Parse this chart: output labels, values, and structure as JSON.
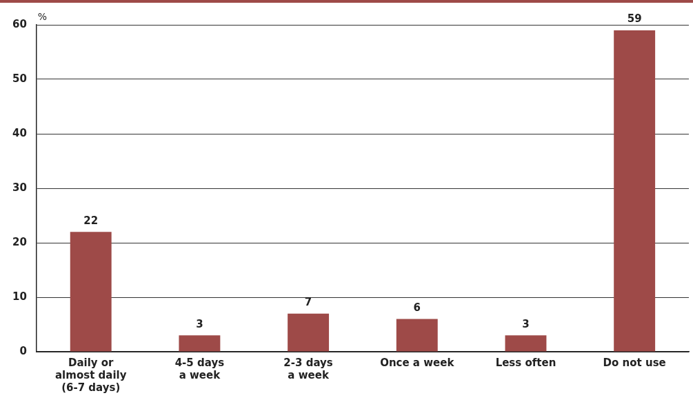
{
  "chart_data": {
    "type": "bar",
    "ylabel": "%",
    "categories": [
      "Daily or\nalmost daily\n(6-7 days)",
      "4-5 days\na week",
      "2-3 days\na week",
      "Once a week",
      "Less often",
      "Do not use"
    ],
    "values": [
      22,
      3,
      7,
      6,
      3,
      59
    ],
    "color": "#9e4a48",
    "ylim": [
      0,
      60
    ],
    "yticks": [
      0,
      10,
      20,
      30,
      40,
      50,
      60
    ],
    "grid": "y",
    "data_labels": true,
    "legend": false
  }
}
